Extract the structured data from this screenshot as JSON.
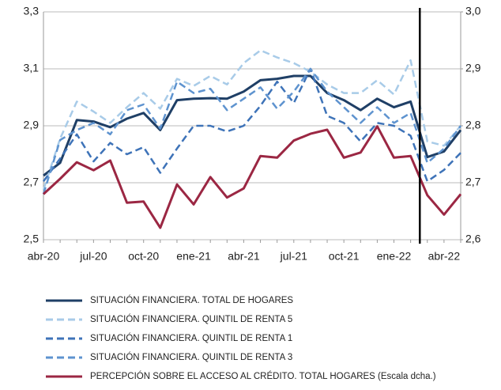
{
  "chart_data": {
    "type": "line",
    "categories": [
      "abr-20",
      null,
      null,
      "jul-20",
      null,
      null,
      "oct-20",
      null,
      null,
      "ene-21",
      null,
      null,
      "abr-21",
      null,
      null,
      "jul-21",
      null,
      null,
      "oct-21",
      null,
      null,
      "ene-22",
      null,
      null,
      "abr-22",
      null
    ],
    "ylim": [
      2.5,
      3.3
    ],
    "yticks": [
      {
        "value": 2.5,
        "label": "2,5"
      },
      {
        "value": 2.7,
        "label": "2,7"
      },
      {
        "value": 2.9,
        "label": "2,9"
      },
      {
        "value": 3.1,
        "label": "3,1"
      },
      {
        "value": 3.3,
        "label": "3,3"
      }
    ],
    "y2lim": [
      2.6,
      3.0
    ],
    "y2ticks": [
      {
        "value": 2.6,
        "label": "2,6"
      },
      {
        "value": 2.7,
        "label": "2,7"
      },
      {
        "value": 2.8,
        "label": "2,8"
      },
      {
        "value": 2.9,
        "label": "2,9"
      },
      {
        "value": 3.0,
        "label": "3,0"
      }
    ],
    "grid": true,
    "series": [
      {
        "name": "SITUACIÓN FINANCIERA. TOTAL DE HOGARES",
        "color": "#1f3f66",
        "dash": false,
        "values": [
          2.725,
          2.77,
          2.92,
          2.915,
          2.895,
          2.925,
          2.945,
          2.885,
          2.99,
          2.995,
          2.997,
          2.995,
          3.02,
          3.06,
          3.065,
          3.075,
          3.075,
          3.015,
          2.99,
          2.955,
          2.995,
          2.965,
          2.985,
          2.79,
          2.81,
          2.885
        ]
      },
      {
        "name": "SITUACIÓN FINANCIERA. QUINTIL DE RENTA 5",
        "color": "#a8cbe8",
        "dash": true,
        "values": [
          2.675,
          2.855,
          2.985,
          2.95,
          2.91,
          2.965,
          3.015,
          2.96,
          3.065,
          3.04,
          3.075,
          3.045,
          3.12,
          3.165,
          3.14,
          3.12,
          3.09,
          3.045,
          3.015,
          3.015,
          3.06,
          3.01,
          3.13,
          2.845,
          2.83,
          2.9
        ]
      },
      {
        "name": "SITUACIÓN FINANCIERA. QUINTIL DE RENTA 1",
        "color": "#3e73b8",
        "dash": true,
        "values": [
          2.705,
          2.785,
          2.87,
          2.775,
          2.84,
          2.8,
          2.825,
          2.735,
          2.82,
          2.9,
          2.9,
          2.88,
          2.9,
          2.97,
          3.055,
          2.98,
          3.1,
          2.935,
          2.91,
          2.845,
          2.91,
          2.9,
          2.865,
          2.705,
          2.745,
          2.805
        ]
      },
      {
        "name": "SITUACIÓN FINANCIERA.  QUINTIL DE RENTA 3",
        "color": "#5e93cf",
        "dash": true,
        "values": [
          2.66,
          2.85,
          2.885,
          2.91,
          2.87,
          2.955,
          2.975,
          2.89,
          3.055,
          3.015,
          3.03,
          2.955,
          2.995,
          3.035,
          2.96,
          3.02,
          3.1,
          3.02,
          2.965,
          2.91,
          2.965,
          2.91,
          2.945,
          2.77,
          2.82,
          2.9
        ]
      },
      {
        "name": "PERCEPCIÓN SOBRE EL ACCESO AL CRÉDITO. TOTAL HOGARES (Escala dcha.)",
        "color": "#9b2743",
        "dash": false,
        "axis": "y2",
        "values": [
          2.68,
          2.707,
          2.736,
          2.722,
          2.739,
          2.665,
          2.667,
          2.621,
          2.697,
          2.662,
          2.71,
          2.674,
          2.69,
          2.747,
          2.744,
          2.774,
          2.786,
          2.793,
          2.744,
          2.753,
          2.799,
          2.744,
          2.747,
          2.678,
          2.644,
          2.68
        ]
      }
    ]
  }
}
